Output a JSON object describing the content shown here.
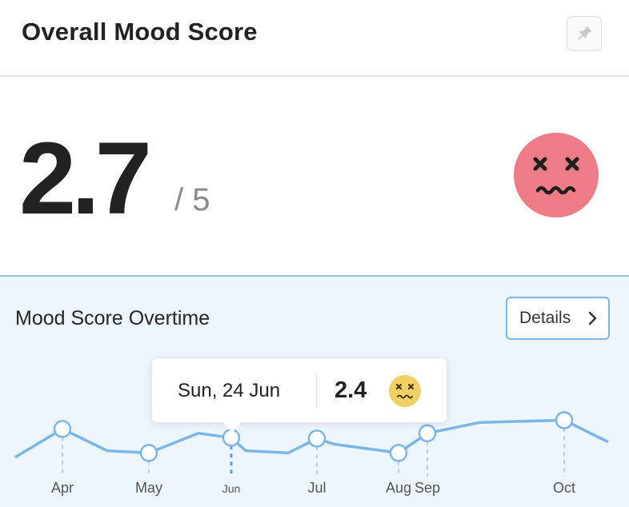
{
  "header": {
    "title": "Overall Mood Score",
    "pin_icon": "pin-icon"
  },
  "score": {
    "value": "2.7",
    "max": "/ 5",
    "face_icon": "dizzy-face-icon",
    "face_color": "#ee7c86"
  },
  "trend": {
    "title": "Mood Score Overtime",
    "details_label": "Details",
    "line_color": "#7ab6ea"
  },
  "tooltip": {
    "date": "Sun, 24 Jun",
    "value": "2.4",
    "face_icon": "dizzy-face-icon",
    "face_color": "#f0cf63"
  },
  "chart_data": {
    "type": "line",
    "series": [
      {
        "values": [
          1.95,
          2.6,
          2.1,
          2.05,
          2.5,
          2.4,
          2.1,
          2.05,
          2.38,
          2.25,
          2.05,
          2.5,
          2.75,
          2.8,
          2.3
        ]
      }
    ],
    "month_markers": [
      {
        "label": "Apr",
        "index": 1
      },
      {
        "label": "May",
        "index": 3
      },
      {
        "label": "Jun",
        "index": 5
      },
      {
        "label": "Jul",
        "index": 8
      },
      {
        "label": "Aug",
        "index": 10
      },
      {
        "label": "Sep",
        "index": 11
      },
      {
        "label": "Oct",
        "index": 13
      }
    ],
    "selected": "Jun",
    "grid": false
  }
}
